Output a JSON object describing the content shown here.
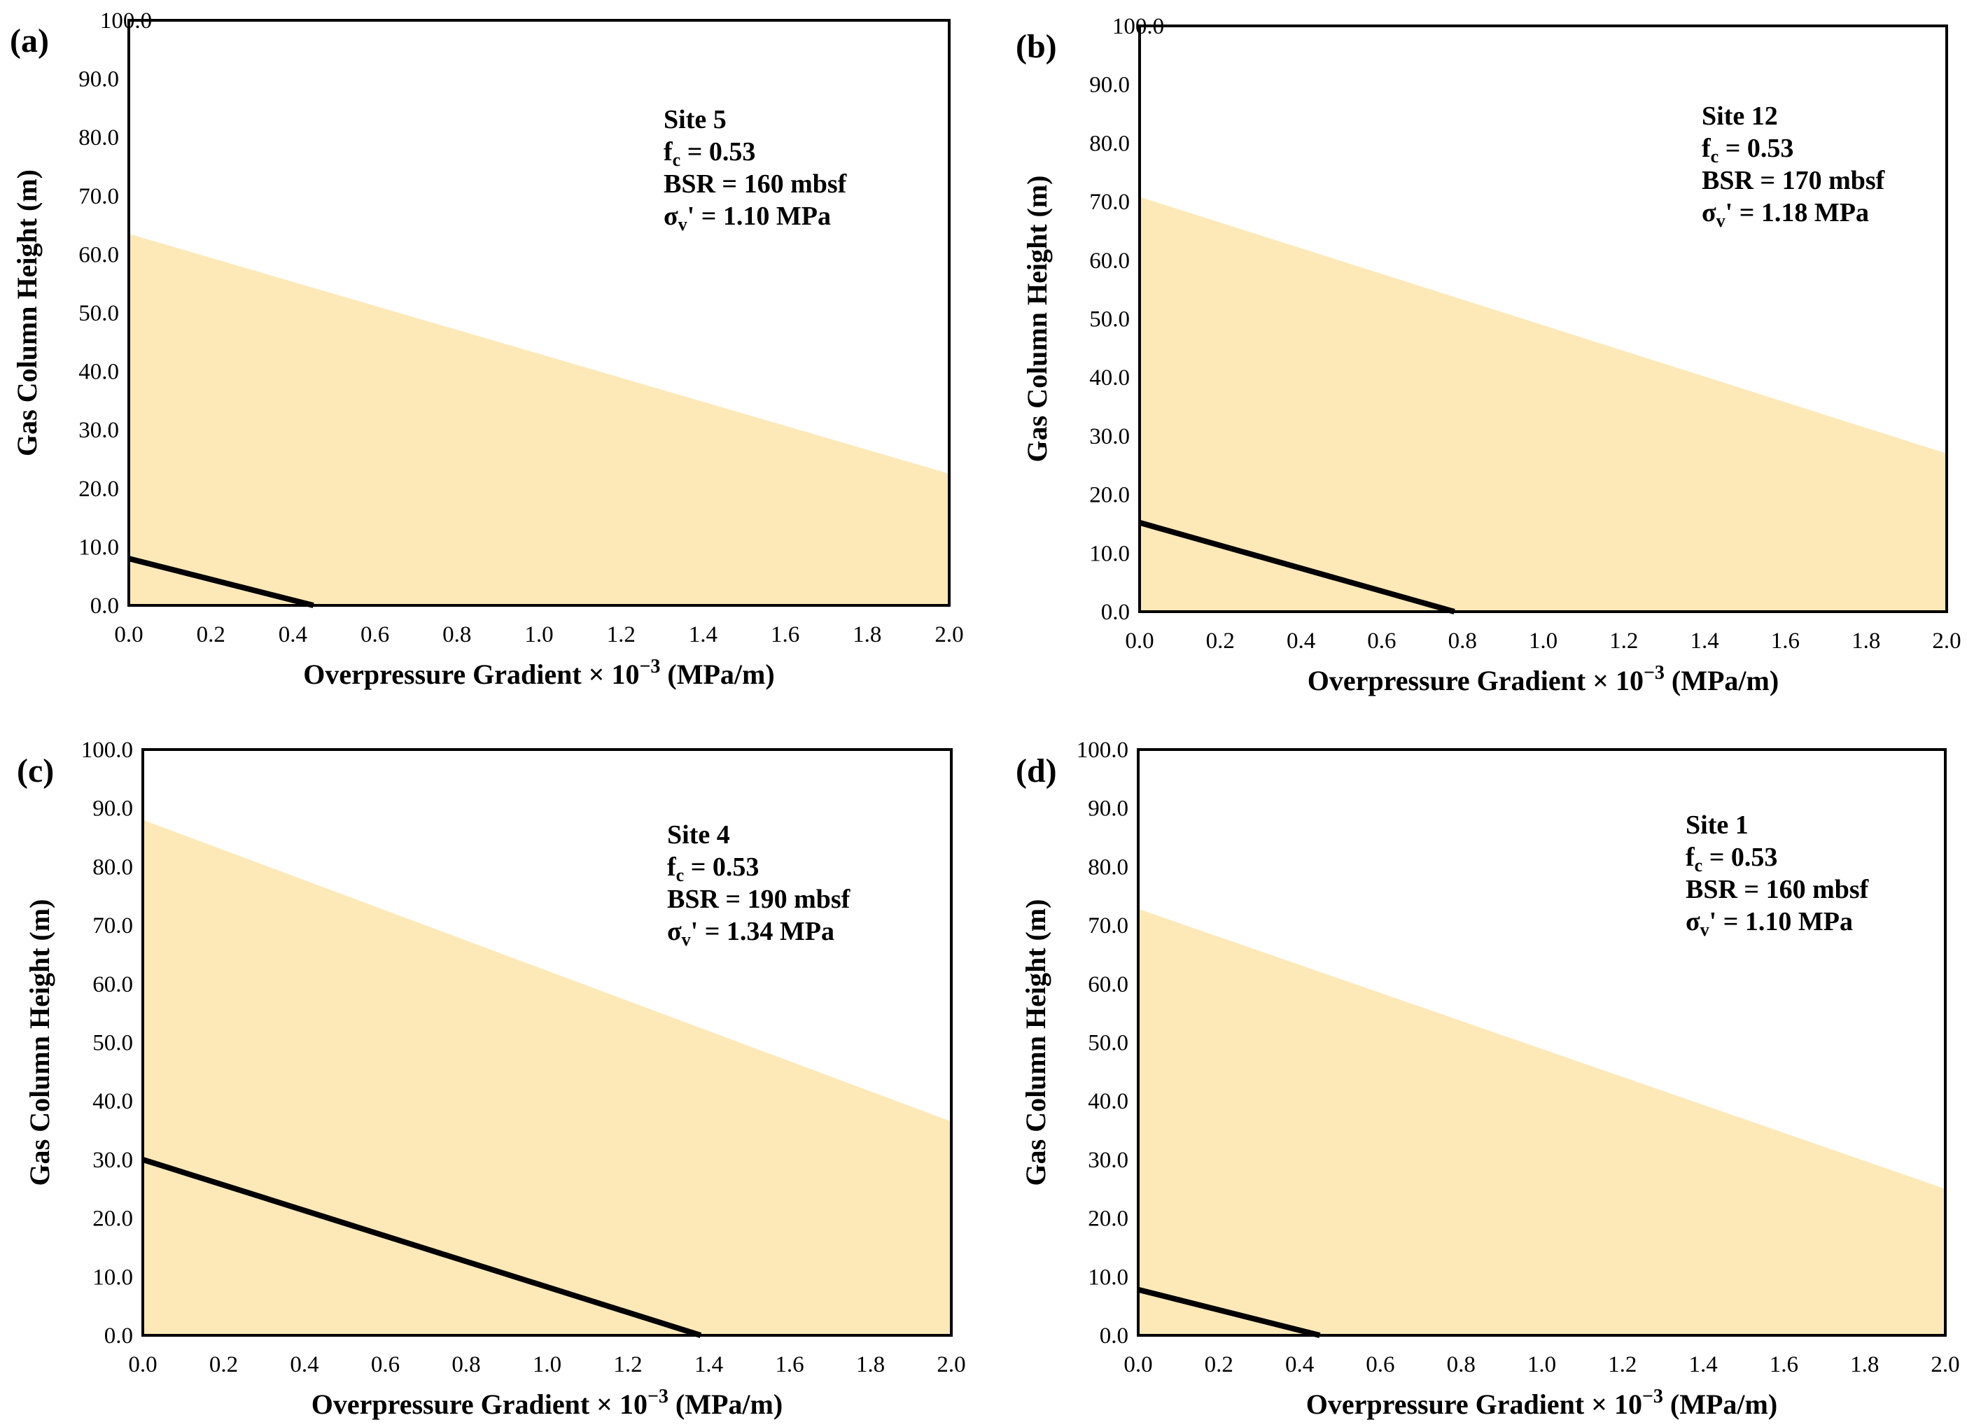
{
  "colors": {
    "fill": "#fde9b8",
    "line": "#000000",
    "frame": "#000000"
  },
  "chart_data": [
    {
      "type": "area",
      "panel_label": "(a)",
      "xlabel_main": "Overpressure Gradient × 10",
      "xlabel_exp": "−3",
      "xlabel_unit": " (MPa/m)",
      "ylabel": "Gas Column Height (m)",
      "xlim": [
        0,
        2.0
      ],
      "ylim": [
        0,
        100
      ],
      "x_ticks": [
        "0.0",
        "0.2",
        "0.4",
        "0.6",
        "0.8",
        "1.0",
        "1.2",
        "1.4",
        "1.6",
        "1.8",
        "2.0"
      ],
      "y_ticks": [
        "0.0",
        "10.0",
        "20.0",
        "30.0",
        "40.0",
        "50.0",
        "60.0",
        "70.0",
        "80.0",
        "90.0",
        "100.0"
      ],
      "series": [
        {
          "name": "upper bound (shaded)",
          "x": [
            0,
            2.0
          ],
          "y": [
            63.5,
            22.5
          ]
        },
        {
          "name": "gas column line",
          "x": [
            0,
            0.45
          ],
          "y": [
            8.0,
            0.0
          ]
        }
      ],
      "annotation": {
        "site": "Site 5",
        "fc_base": "f",
        "fc_sub": "c",
        "fc_rest": " = 0.53",
        "bsr": "BSR = 160 mbsf",
        "sv_base": "σ",
        "sv_sub": "v",
        "sv_rest": "' = 1.10 MPa"
      }
    },
    {
      "type": "area",
      "panel_label": "(b)",
      "xlabel_main": "Overpressure Gradient × 10",
      "xlabel_exp": "−3",
      "xlabel_unit": " (MPa/m)",
      "ylabel": "Gas Column Height (m)",
      "xlim": [
        0,
        2.0
      ],
      "ylim": [
        0,
        100
      ],
      "x_ticks": [
        "0.0",
        "0.2",
        "0.4",
        "0.6",
        "0.8",
        "1.0",
        "1.2",
        "1.4",
        "1.6",
        "1.8",
        "2.0"
      ],
      "y_ticks": [
        "0.0",
        "10.0",
        "20.0",
        "30.0",
        "40.0",
        "50.0",
        "60.0",
        "70.0",
        "80.0",
        "90.0",
        "100.0"
      ],
      "series": [
        {
          "name": "upper bound (shaded)",
          "x": [
            0,
            2.0
          ],
          "y": [
            70.8,
            27.0
          ]
        },
        {
          "name": "gas column line",
          "x": [
            0,
            0.78
          ],
          "y": [
            15.2,
            0.0
          ]
        }
      ],
      "annotation": {
        "site": "Site 12",
        "fc_base": "f",
        "fc_sub": "c",
        "fc_rest": " = 0.53",
        "bsr": "BSR = 170 mbsf",
        "sv_base": "σ",
        "sv_sub": "v",
        "sv_rest": "' = 1.18 MPa"
      }
    },
    {
      "type": "area",
      "panel_label": "(c)",
      "xlabel_main": "Overpressure Gradient × 10",
      "xlabel_exp": "−3",
      "xlabel_unit": " (MPa/m)",
      "ylabel": "Gas Column Height (m)",
      "xlim": [
        0,
        2.0
      ],
      "ylim": [
        0,
        100
      ],
      "x_ticks": [
        "0.0",
        "0.2",
        "0.4",
        "0.6",
        "0.8",
        "1.0",
        "1.2",
        "1.4",
        "1.6",
        "1.8",
        "2.0"
      ],
      "y_ticks": [
        "0.0",
        "10.0",
        "20.0",
        "30.0",
        "40.0",
        "50.0",
        "60.0",
        "70.0",
        "80.0",
        "90.0",
        "100.0"
      ],
      "series": [
        {
          "name": "upper bound (shaded)",
          "x": [
            0,
            2.0
          ],
          "y": [
            88.0,
            36.5
          ]
        },
        {
          "name": "gas column line",
          "x": [
            0,
            1.38
          ],
          "y": [
            30.0,
            0.0
          ]
        }
      ],
      "annotation": {
        "site": "Site 4",
        "fc_base": "f",
        "fc_sub": "c",
        "fc_rest": " = 0.53",
        "bsr": "BSR = 190 mbsf",
        "sv_base": "σ",
        "sv_sub": "v",
        "sv_rest": "' = 1.34 MPa"
      }
    },
    {
      "type": "area",
      "panel_label": "(d)",
      "xlabel_main": "Overpressure Gradient × 10",
      "xlabel_exp": "−3",
      "xlabel_unit": " (MPa/m)",
      "ylabel": "Gas Column Height (m)",
      "xlim": [
        0,
        2.0
      ],
      "ylim": [
        0,
        100
      ],
      "x_ticks": [
        "0.0",
        "0.2",
        "0.4",
        "0.6",
        "0.8",
        "1.0",
        "1.2",
        "1.4",
        "1.6",
        "1.8",
        "2.0"
      ],
      "y_ticks": [
        "0.0",
        "10.0",
        "20.0",
        "30.0",
        "40.0",
        "50.0",
        "60.0",
        "70.0",
        "80.0",
        "90.0",
        "100.0"
      ],
      "series": [
        {
          "name": "upper bound (shaded)",
          "x": [
            0,
            2.0
          ],
          "y": [
            72.8,
            25.0
          ]
        },
        {
          "name": "gas column line",
          "x": [
            0,
            0.45
          ],
          "y": [
            7.8,
            0.0
          ]
        }
      ],
      "annotation": {
        "site": "Site 1",
        "fc_base": "f",
        "fc_sub": "c",
        "fc_rest": " = 0.53",
        "bsr": "BSR = 160 mbsf",
        "sv_base": "σ",
        "sv_sub": "v",
        "sv_rest": "' = 1.10 MPa"
      }
    }
  ]
}
